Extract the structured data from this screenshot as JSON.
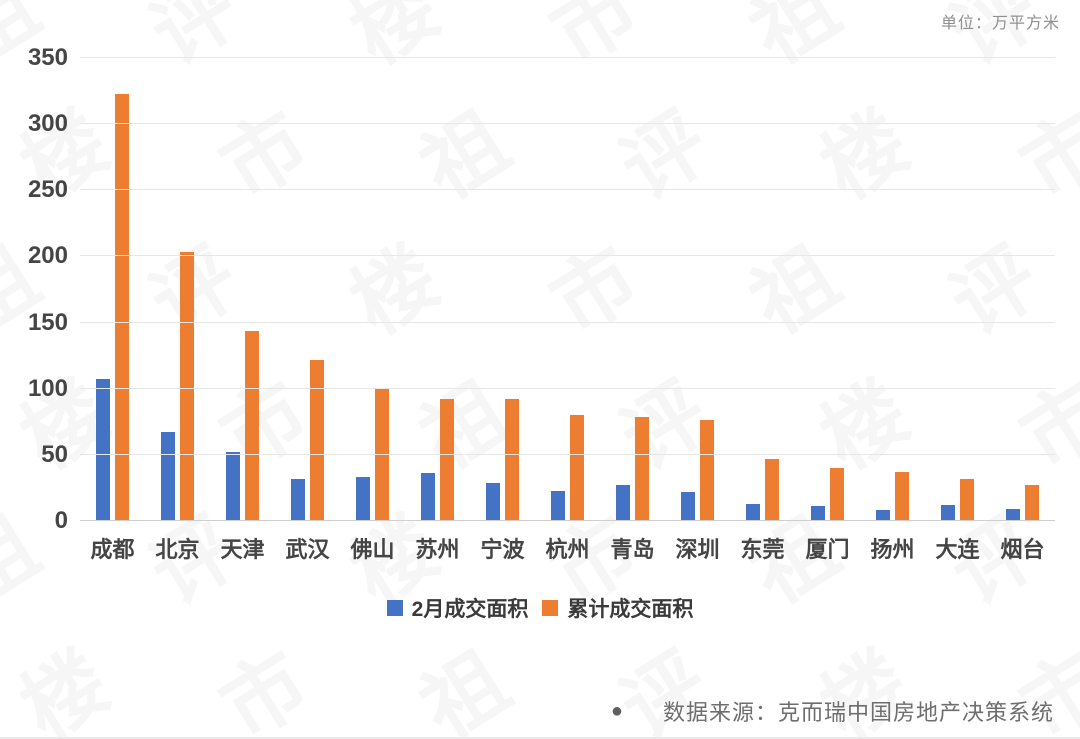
{
  "chart": {
    "unit_label": "单位：万平方米"
  },
  "chart_data": {
    "type": "bar",
    "categories": [
      "成都",
      "北京",
      "天津",
      "武汉",
      "佛山",
      "苏州",
      "宁波",
      "杭州",
      "青岛",
      "深圳",
      "东莞",
      "厦门",
      "扬州",
      "大连",
      "烟台"
    ],
    "series": [
      {
        "name": "2月成交面积",
        "color": "#4472C4",
        "values": [
          107,
          67,
          52,
          32,
          33,
          36,
          29,
          23,
          27,
          22,
          13,
          11,
          8,
          12,
          9
        ]
      },
      {
        "name": "累计成交面积",
        "color": "#ED7D31",
        "values": [
          323,
          203,
          144,
          122,
          100,
          92,
          92,
          80,
          79,
          76,
          47,
          40,
          37,
          32,
          27
        ]
      }
    ],
    "title": "",
    "xlabel": "",
    "ylabel": "",
    "ylim": [
      0,
      350
    ],
    "yticks": [
      0,
      50,
      100,
      150,
      200,
      250,
      300,
      350
    ],
    "grid": true,
    "legend_position": "bottom"
  },
  "footer": {
    "source_bullet": "●",
    "source_text": "数据来源：克而瑞中国房地产决策系统"
  },
  "watermark": {
    "chars": [
      "祖",
      "评",
      "楼",
      "市"
    ]
  }
}
